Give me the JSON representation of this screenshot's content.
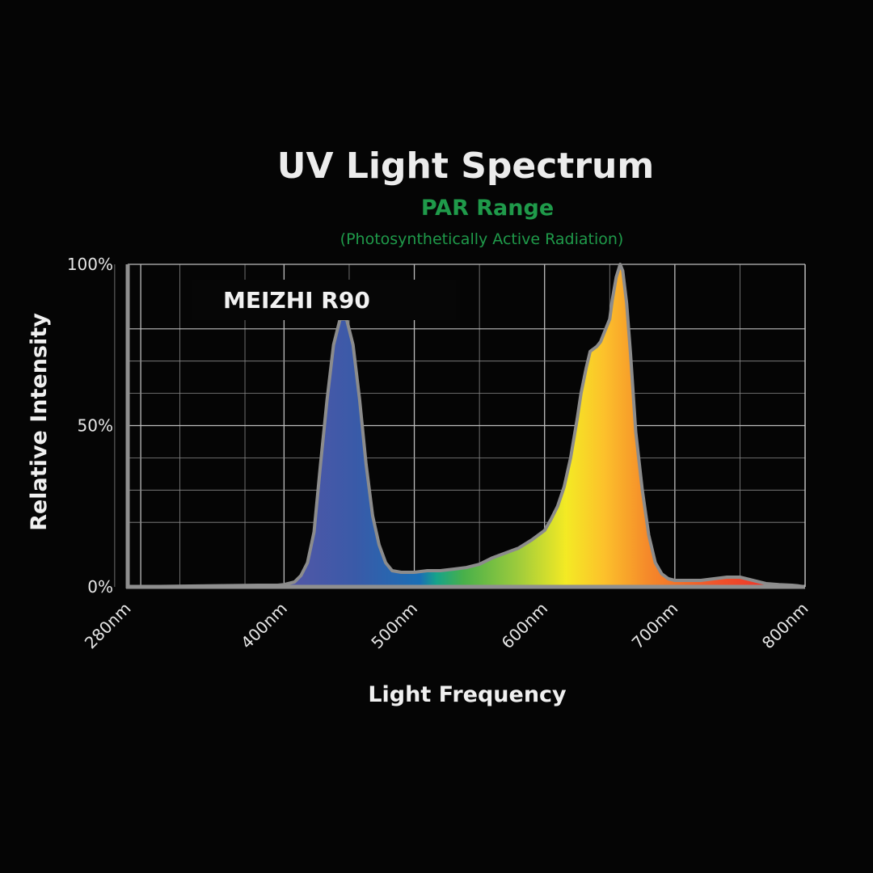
{
  "chart_data": {
    "type": "area",
    "title": "UV Light Spectrum",
    "subtitle": "PAR Range",
    "subtitle_note": "(Photosynthetically Active Radiation)",
    "series_label": "MEIZHI R90",
    "xlabel": "Light Frequency",
    "ylabel": "Relative Intensity",
    "xlim": [
      280,
      800
    ],
    "ylim": [
      0,
      100
    ],
    "grid": true,
    "x_ticks": [
      {
        "value": 280,
        "label": "280nm"
      },
      {
        "value": 400,
        "label": "400nm"
      },
      {
        "value": 500,
        "label": "500nm"
      },
      {
        "value": 600,
        "label": "600nm"
      },
      {
        "value": 700,
        "label": "700nm"
      },
      {
        "value": 800,
        "label": "800nm"
      }
    ],
    "y_ticks": [
      {
        "value": 0,
        "label": "0%"
      },
      {
        "value": 50,
        "label": "50%"
      },
      {
        "value": 100,
        "label": "100%"
      }
    ],
    "x": [
      380,
      395,
      400,
      408,
      413,
      418,
      423,
      428,
      433,
      438,
      443,
      448,
      453,
      458,
      463,
      468,
      473,
      478,
      483,
      490,
      495,
      500,
      510,
      520,
      530,
      540,
      550,
      560,
      570,
      580,
      590,
      600,
      605,
      610,
      615,
      620,
      625,
      628,
      632,
      635,
      640,
      643,
      646,
      650,
      652,
      655,
      658,
      660,
      663,
      666,
      670,
      675,
      680,
      685,
      690,
      695,
      700,
      705,
      710,
      715,
      720,
      730,
      740,
      750,
      760,
      770,
      780,
      790,
      795,
      800
    ],
    "y": [
      0.5,
      0.5,
      0.7,
      1.5,
      3.5,
      7.5,
      17,
      38,
      58,
      75,
      83,
      83,
      75,
      58,
      38,
      22,
      13,
      7.5,
      5,
      4.5,
      4.5,
      4.5,
      5,
      5,
      5.5,
      6,
      7,
      9,
      10.5,
      12,
      14.5,
      17.5,
      21,
      25,
      31,
      40,
      52,
      60,
      68,
      73,
      74.5,
      76,
      79,
      83,
      89,
      96,
      100,
      98,
      88,
      72,
      48,
      30,
      16,
      7.5,
      4,
      2.5,
      2,
      2,
      2,
      2,
      2,
      2.5,
      3,
      3,
      2,
      1,
      0.7,
      0.5,
      0.3,
      0
    ],
    "colors": {
      "title": "#ececec",
      "subtitle": "#1f9a4a",
      "curve_outline": "#8c8c8c",
      "grid": "#bdbdbd",
      "spectrum_stops": [
        "#5e55a6",
        "#3a5aa8",
        "#1a6fb5",
        "#16a38a",
        "#48b04a",
        "#9dcb3c",
        "#f4ea24",
        "#fcc12b",
        "#f58a2a",
        "#ef5a2b",
        "#ee3b2a",
        "#e8222a"
      ]
    }
  }
}
